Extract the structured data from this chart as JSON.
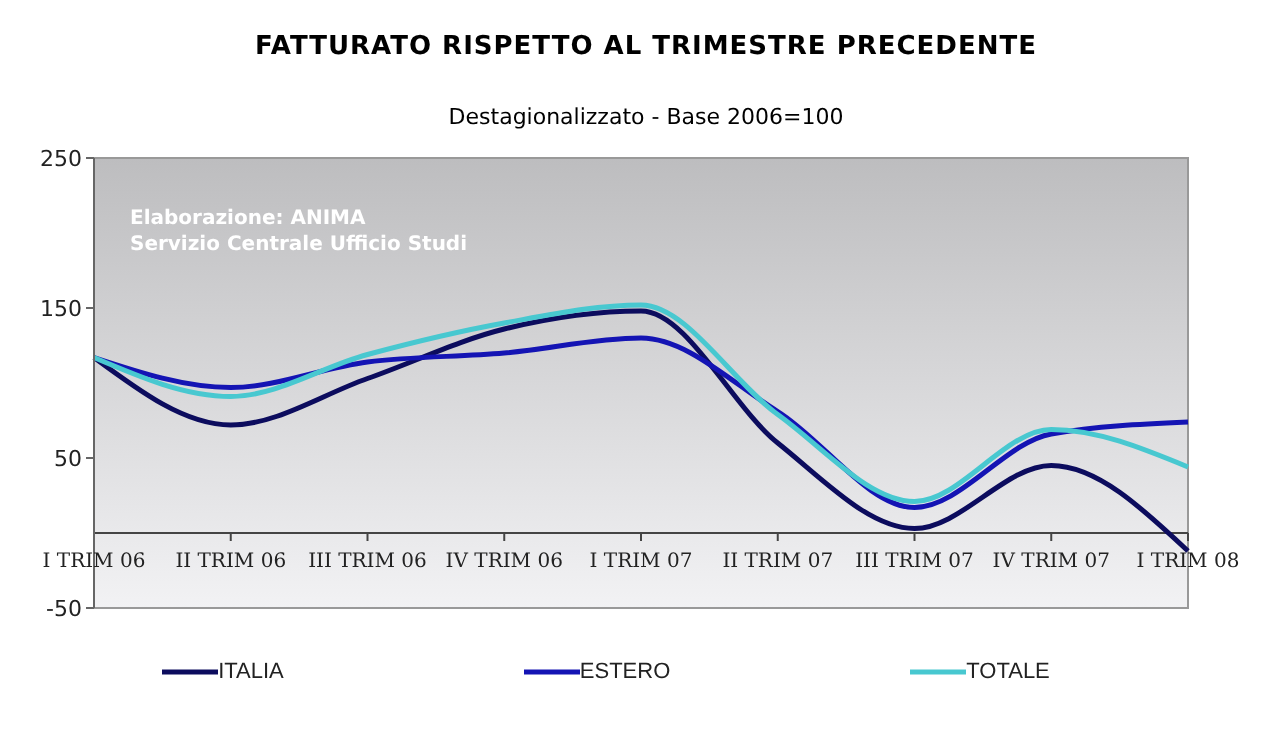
{
  "chart_data": {
    "type": "line",
    "title": "FATTURATO RISPETTO AL TRIMESTRE PRECEDENTE",
    "subtitle": "Destagionalizzato - Base 2006=100",
    "annotations": [
      "Elaborazione: ANIMA\nServizio Centrale Ufficio Studi"
    ],
    "categories": [
      "I TRIM 06",
      "II TRIM 06",
      "III TRIM 06",
      "IV TRIM 06",
      "I TRIM 07",
      "II TRIM 07",
      "III TRIM 07",
      "IV TRIM 07",
      "I TRIM 08"
    ],
    "series": [
      {
        "name": "ITALIA",
        "color": "#0c0c5e",
        "values": [
          117,
          72,
          103,
          136,
          148,
          60,
          3,
          45,
          -12
        ]
      },
      {
        "name": "ESTERO",
        "color": "#1414b4",
        "values": [
          117,
          97,
          114,
          120,
          130,
          81,
          17,
          66,
          74
        ]
      },
      {
        "name": "TOTALE",
        "color": "#48c8d0",
        "values": [
          117,
          91,
          119,
          140,
          152,
          79,
          21,
          69,
          44
        ]
      }
    ],
    "ylim": [
      -50,
      250
    ],
    "yticks": [
      -50,
      50,
      150,
      250
    ],
    "legend": "bottom",
    "marker": "none",
    "line_style": "solid"
  }
}
